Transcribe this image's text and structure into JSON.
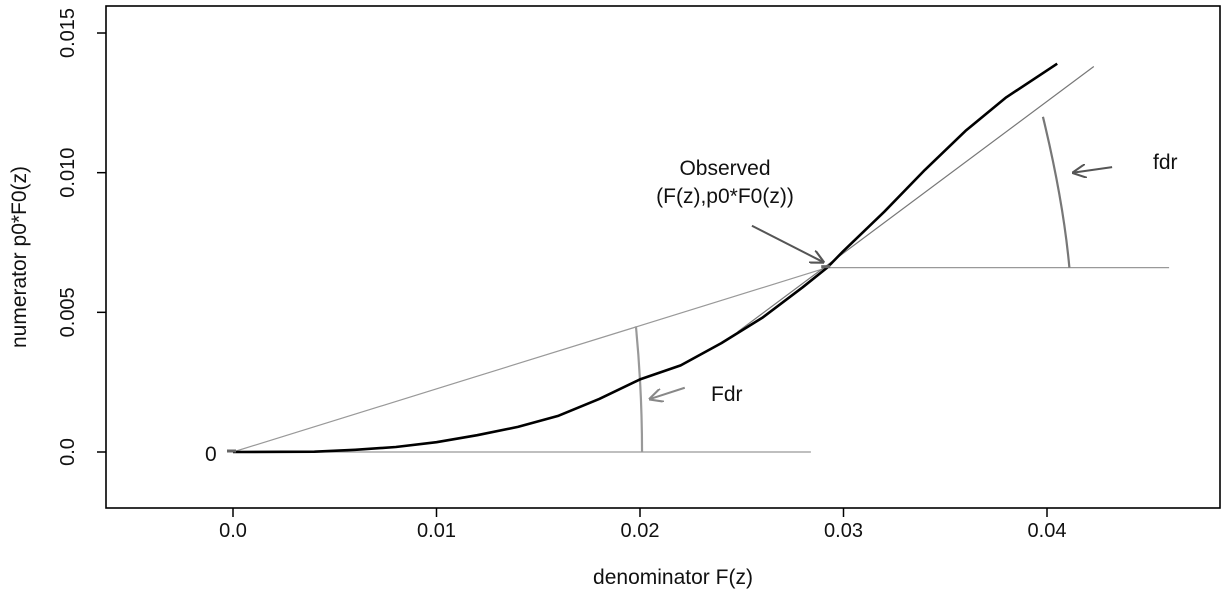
{
  "chart_data": {
    "type": "line",
    "title": "",
    "xlabel": "denominator F(z)",
    "ylabel": "numerator p0*F0(z)",
    "xlim": [
      -0.006,
      0.046
    ],
    "ylim": [
      -0.0021,
      0.0161
    ],
    "x_ticks": [
      {
        "value": 0.0,
        "label": "0.0"
      },
      {
        "value": 0.01,
        "label": "0.01"
      },
      {
        "value": 0.02,
        "label": "0.02"
      },
      {
        "value": 0.03,
        "label": "0.03"
      },
      {
        "value": 0.04,
        "label": "0.04"
      }
    ],
    "y_ticks": [
      {
        "value": 0.0,
        "label": "0.0"
      },
      {
        "value": 0.005,
        "label": "0.005"
      },
      {
        "value": 0.01,
        "label": "0.010"
      },
      {
        "value": 0.015,
        "label": "0.015"
      }
    ],
    "grid": false,
    "series": [
      {
        "name": "",
        "color": "#000000",
        "x": [
          0.0,
          0.004,
          0.006,
          0.008,
          0.01,
          0.012,
          0.014,
          0.016,
          0.018,
          0.02,
          0.022,
          0.024,
          0.026,
          0.028,
          0.0292,
          0.03,
          0.032,
          0.034,
          0.036,
          0.038,
          0.0405
        ],
        "y": [
          0.0,
          1e-05,
          8e-05,
          0.00018,
          0.00035,
          0.0006,
          0.0009,
          0.0013,
          0.0019,
          0.0026,
          0.0031,
          0.0039,
          0.0048,
          0.0059,
          0.0066,
          0.0072,
          0.0086,
          0.0101,
          0.0115,
          0.0127,
          0.0139
        ]
      }
    ],
    "reference_lines": [
      {
        "role": "chord",
        "color": "#999999",
        "x": [
          0.0,
          0.0292
        ],
        "y": [
          0.0,
          0.0066
        ]
      },
      {
        "role": "tangent",
        "color": "#777777",
        "x": [
          0.0248,
          0.0423
        ],
        "y": [
          0.0043,
          0.0138
        ]
      },
      {
        "role": "baseline",
        "color": "#999999",
        "x": [
          0.0,
          0.0284
        ],
        "y": [
          0.0,
          0.0
        ]
      },
      {
        "role": "level",
        "color": "#999999",
        "x": [
          0.0292,
          0.046
        ],
        "y": [
          0.0066,
          0.0066
        ]
      }
    ],
    "arcs": [
      {
        "role": "Fdr-arc",
        "color": "#999999",
        "x": [
          0.0198,
          0.0201,
          0.0201
        ],
        "y": [
          0.0045,
          0.0022,
          0.0
        ]
      },
      {
        "role": "fdr-arc",
        "color": "#777777",
        "x": [
          0.0398,
          0.0408,
          0.0411
        ],
        "y": [
          0.012,
          0.009,
          0.0066
        ]
      }
    ],
    "markers": [
      {
        "role": "origin",
        "x": 0.0,
        "y": 0.0
      },
      {
        "role": "observed",
        "x": 0.0292,
        "y": 0.0066
      }
    ],
    "annotations": {
      "zero_label": "0",
      "observed_line1": "Observed",
      "observed_line2": "(F(z),p0*F0(z))",
      "fdr_label": "fdr",
      "Fdr_label": "Fdr"
    },
    "arrows": [
      {
        "role": "observed-arrow",
        "color": "#555555",
        "from": [
          0.0255,
          0.0081
        ],
        "to": [
          0.029,
          0.0068
        ]
      },
      {
        "role": "fdr-arrow",
        "color": "#555555",
        "from": [
          0.0432,
          0.0102
        ],
        "to": [
          0.0413,
          0.01
        ]
      },
      {
        "role": "Fdr-arrow",
        "color": "#888888",
        "from": [
          0.0222,
          0.0023
        ],
        "to": [
          0.0205,
          0.0019
        ]
      }
    ]
  }
}
